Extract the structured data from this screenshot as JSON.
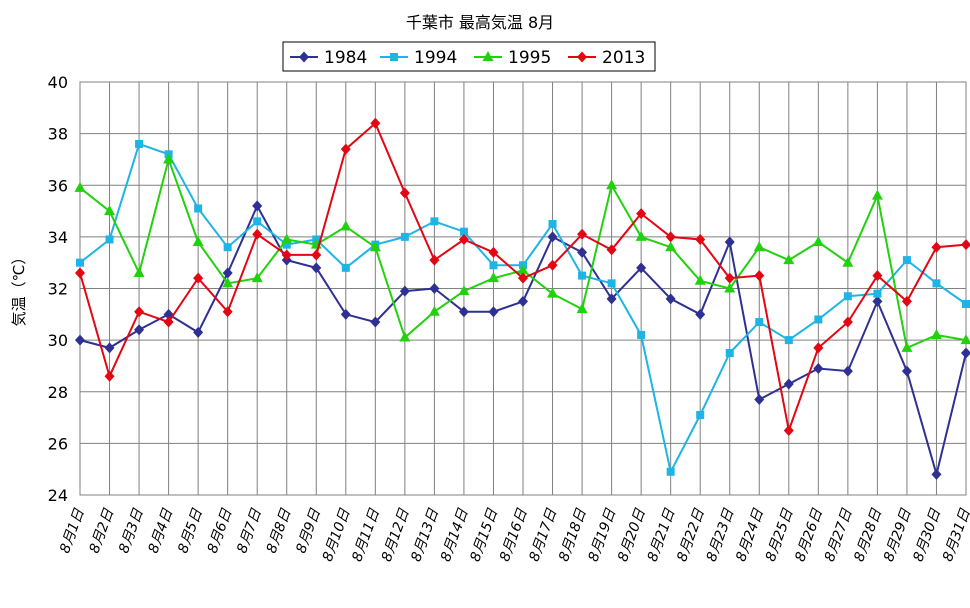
{
  "chart_data": {
    "type": "line",
    "title": "千葉市 最高気温 8月",
    "xlabel": "",
    "ylabel": "気温（℃）",
    "ylim": [
      24,
      40
    ],
    "yticks": [
      24,
      26,
      28,
      30,
      32,
      34,
      36,
      38,
      40
    ],
    "grid": true,
    "legend_position": "top-center",
    "categories": [
      "8月1日",
      "8月2日",
      "8月3日",
      "8月4日",
      "8月5日",
      "8月6日",
      "8月7日",
      "8月8日",
      "8月9日",
      "8月10日",
      "8月11日",
      "8月12日",
      "8月13日",
      "8月14日",
      "8月15日",
      "8月16日",
      "8月17日",
      "8月18日",
      "8月19日",
      "8月20日",
      "8月21日",
      "8月22日",
      "8月23日",
      "8月24日",
      "8月25日",
      "8月26日",
      "8月27日",
      "8月28日",
      "8月29日",
      "8月30日",
      "8月31日"
    ],
    "series": [
      {
        "name": "1984",
        "color": "#2E3192",
        "marker": "diamond",
        "values": [
          30.0,
          29.7,
          30.4,
          31.0,
          30.3,
          32.6,
          35.2,
          33.1,
          32.8,
          31.0,
          30.7,
          31.9,
          32.0,
          31.1,
          31.1,
          31.5,
          34.0,
          33.4,
          31.6,
          32.8,
          31.6,
          31.0,
          33.8,
          27.7,
          28.3,
          28.9,
          28.8,
          31.5,
          28.8,
          24.8,
          29.5
        ]
      },
      {
        "name": "1994",
        "color": "#1EB4E6",
        "marker": "square",
        "values": [
          33.0,
          33.9,
          37.6,
          37.2,
          35.1,
          33.6,
          34.6,
          33.7,
          33.9,
          32.8,
          33.7,
          34.0,
          34.6,
          34.2,
          32.9,
          32.9,
          34.5,
          32.5,
          32.2,
          30.2,
          24.9,
          27.1,
          29.5,
          30.7,
          30.0,
          30.8,
          31.7,
          31.8,
          33.1,
          32.2,
          31.4
        ]
      },
      {
        "name": "1995",
        "color": "#22D10E",
        "marker": "triangle",
        "values": [
          35.9,
          35.0,
          32.6,
          37.0,
          33.8,
          32.2,
          32.4,
          33.9,
          33.7,
          34.4,
          33.6,
          30.1,
          31.1,
          31.9,
          32.4,
          32.7,
          31.8,
          31.2,
          36.0,
          34.0,
          33.6,
          32.3,
          32.0,
          33.6,
          33.1,
          33.8,
          33.0,
          35.6,
          29.7,
          30.2,
          30.0
        ]
      },
      {
        "name": "2013",
        "color": "#E30613",
        "marker": "diamond",
        "values": [
          32.6,
          28.6,
          31.1,
          30.7,
          32.4,
          31.1,
          34.1,
          33.3,
          33.3,
          37.4,
          38.4,
          35.7,
          33.1,
          33.9,
          33.4,
          32.4,
          32.9,
          34.1,
          33.5,
          34.9,
          34.0,
          33.9,
          32.4,
          32.5,
          26.5,
          29.7,
          30.7,
          32.5,
          31.5,
          33.6,
          33.7
        ]
      }
    ]
  }
}
